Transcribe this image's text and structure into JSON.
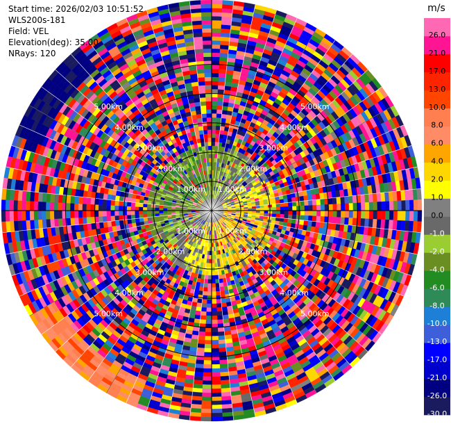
{
  "header": {
    "start_time": "Start time: 2026/02/03 10:51:52",
    "instrument": "WLS200s-181",
    "field": "Field: VEL",
    "elevation": "Elevation(deg): 35.00",
    "nrays": "NRays: 120"
  },
  "chart_data": {
    "type": "heatmap",
    "projection": "polar-ppi",
    "n_rays": 120,
    "max_range_km": 7.2,
    "range_rings_km": [
      1,
      2,
      3,
      4,
      5
    ],
    "ring_labels": [
      "1.00km",
      "2.00km",
      "3.00km",
      "4.00km",
      "5.00km"
    ],
    "colorbar": {
      "unit": "m/s",
      "levels": [
        -30,
        -26,
        -21,
        -17,
        -13,
        -10,
        -8,
        -6,
        -4,
        -2,
        -1,
        0,
        1,
        2,
        4,
        6,
        8,
        10,
        13,
        17,
        21,
        26,
        30
      ],
      "tick_labels": [
        "-30.0",
        "-26.0",
        "-21.0",
        "-17.0",
        "-13.0",
        "-10.0",
        "-8.0",
        "-6.0",
        "-4.0",
        "-2.0",
        "-1.0",
        "0.0",
        "1.0",
        "2.0",
        "4.0",
        "6.0",
        "8.0",
        "10.0",
        "13.0",
        "17.0",
        "21.0",
        "26.0"
      ],
      "colors": [
        "#1a1a5e",
        "#000080",
        "#0000cd",
        "#0000ff",
        "#3d5fd9",
        "#1e7fd6",
        "#2e8b57",
        "#228b22",
        "#6b8e23",
        "#9acd32",
        "#696969",
        "#808080",
        "#ffff00",
        "#ffd700",
        "#ffa500",
        "#ff8c66",
        "#ff7f50",
        "#ff4500",
        "#ff2400",
        "#ff0000",
        "#ff1493",
        "#ff69b4"
      ]
    }
  }
}
